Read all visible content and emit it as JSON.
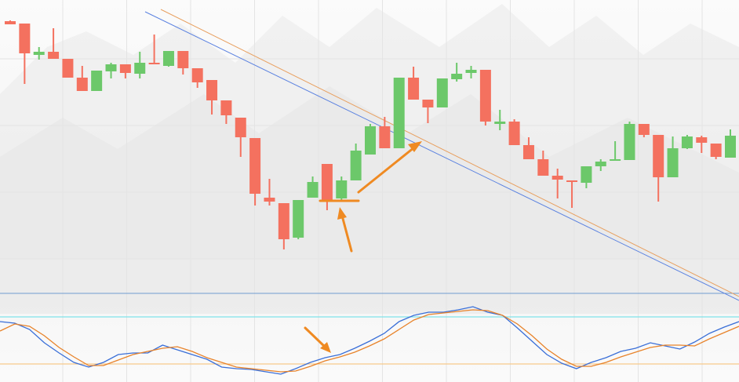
{
  "chart_data": [
    {
      "type": "candlestick",
      "ylim": [
        0,
        340
      ],
      "grid": true,
      "up_color": "#6cc86a",
      "down_color": "#f4715f",
      "open": [
        313,
        310,
        270,
        274,
        265,
        241,
        224,
        249,
        258,
        246,
        260,
        256,
        275,
        253,
        238,
        212,
        190,
        164,
        88,
        81,
        37,
        88,
        131,
        87,
        110,
        143,
        179,
        151,
        241,
        213,
        203,
        239,
        247,
        251,
        182,
        185,
        155,
        137,
        116,
        110,
        107,
        128,
        135,
        136,
        182,
        168,
        114,
        151,
        165,
        157,
        139
      ],
      "high": [
        314,
        310,
        280,
        304,
        265,
        256,
        250,
        260,
        258,
        274,
        296,
        275,
        275,
        253,
        238,
        212,
        190,
        164,
        112,
        81,
        85,
        115,
        131,
        115,
        157,
        182,
        191,
        241,
        255,
        213,
        240,
        260,
        256,
        251,
        200,
        188,
        165,
        148,
        125,
        110,
        128,
        137,
        160,
        185,
        182,
        168,
        166,
        168,
        167,
        157,
        175
      ],
      "low": [
        309,
        233,
        264,
        265,
        241,
        224,
        224,
        240,
        240,
        240,
        258,
        255,
        245,
        228,
        194,
        182,
        140,
        78,
        78,
        22,
        35,
        88,
        72,
        85,
        110,
        143,
        151,
        151,
        213,
        183,
        203,
        236,
        240,
        180,
        174,
        155,
        137,
        116,
        87,
        75,
        100,
        122,
        135,
        136,
        165,
        83,
        114,
        150,
        145,
        137,
        139
      ],
      "close": [
        309,
        272,
        274,
        265,
        241,
        224,
        250,
        258,
        247,
        260,
        258,
        275,
        253,
        235,
        212,
        193,
        165,
        93,
        83,
        35,
        85,
        108,
        85,
        110,
        148,
        179,
        151,
        241,
        213,
        203,
        240,
        246,
        251,
        185,
        185,
        155,
        137,
        116,
        111,
        108,
        128,
        134,
        137,
        182,
        168,
        114,
        151,
        166,
        158,
        140,
        167
      ]
    },
    {
      "type": "line",
      "ylim": [
        0,
        100
      ],
      "levels": [
        {
          "value": 80,
          "color": "#7fe3e8"
        },
        {
          "value": 20,
          "color": "#f7c98a"
        }
      ],
      "series": [
        {
          "color": "#3a6fd8",
          "values": [
            74,
            72,
            64,
            47,
            34,
            22,
            16,
            22,
            32,
            34,
            34,
            44,
            38,
            32,
            26,
            16,
            14,
            13,
            10,
            7,
            14,
            22,
            28,
            32,
            40,
            49,
            59,
            74,
            82,
            86,
            86,
            89,
            93,
            86,
            82,
            66,
            49,
            32,
            21,
            14,
            22,
            28,
            36,
            40,
            47,
            43,
            39,
            48,
            59,
            67,
            74
          ]
        },
        {
          "color": "#e8832a",
          "values": [
            62,
            71,
            68,
            56,
            41,
            29,
            18,
            18,
            25,
            32,
            36,
            40,
            42,
            36,
            28,
            22,
            16,
            14,
            12,
            10,
            11,
            17,
            24,
            29,
            35,
            43,
            52,
            64,
            76,
            83,
            85,
            87,
            89,
            88,
            82,
            71,
            56,
            39,
            26,
            17,
            17,
            22,
            29,
            35,
            41,
            44,
            44,
            43,
            52,
            60,
            68
          ]
        }
      ]
    }
  ]
}
